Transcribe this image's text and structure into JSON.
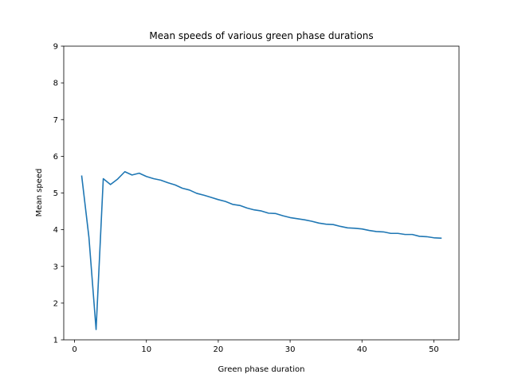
{
  "chart_data": {
    "type": "line",
    "title": "Mean speeds of various green phase durations",
    "xlabel": "Green phase duration",
    "ylabel": "Mean speed",
    "xlim": [
      -1.5,
      53.5
    ],
    "ylim": [
      1,
      9
    ],
    "xticks": [
      0,
      10,
      20,
      30,
      40,
      50
    ],
    "yticks": [
      1,
      2,
      3,
      4,
      5,
      6,
      7,
      8,
      9
    ],
    "grid": false,
    "series": [
      {
        "color": "#1f77b4",
        "x": [
          1,
          2,
          3,
          4,
          5,
          6,
          7,
          8,
          9,
          10,
          11,
          12,
          13,
          14,
          15,
          16,
          17,
          18,
          19,
          20,
          21,
          22,
          23,
          24,
          25,
          26,
          27,
          28,
          29,
          30,
          31,
          32,
          33,
          34,
          35,
          36,
          37,
          38,
          39,
          40,
          41,
          42,
          43,
          44,
          45,
          46,
          47,
          48,
          49,
          50,
          51
        ],
        "y": [
          5.46,
          3.8,
          1.28,
          5.39,
          5.23,
          5.38,
          5.58,
          5.49,
          5.54,
          5.45,
          5.39,
          5.35,
          5.28,
          5.22,
          5.13,
          5.08,
          4.99,
          4.94,
          4.88,
          4.82,
          4.77,
          4.69,
          4.66,
          4.59,
          4.54,
          4.51,
          4.45,
          4.44,
          4.38,
          4.33,
          4.3,
          4.27,
          4.23,
          4.18,
          4.15,
          4.14,
          4.09,
          4.05,
          4.04,
          4.02,
          3.98,
          3.95,
          3.94,
          3.9,
          3.9,
          3.87,
          3.87,
          3.82,
          3.81,
          3.78,
          3.77
        ]
      }
    ]
  }
}
